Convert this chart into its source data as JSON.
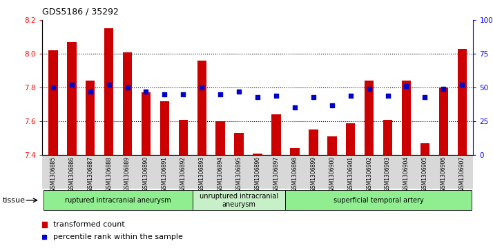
{
  "title": "GDS5186 / 35292",
  "samples": [
    "GSM1306885",
    "GSM1306886",
    "GSM1306887",
    "GSM1306888",
    "GSM1306889",
    "GSM1306890",
    "GSM1306891",
    "GSM1306892",
    "GSM1306893",
    "GSM1306894",
    "GSM1306895",
    "GSM1306896",
    "GSM1306897",
    "GSM1306898",
    "GSM1306899",
    "GSM1306900",
    "GSM1306901",
    "GSM1306902",
    "GSM1306903",
    "GSM1306904",
    "GSM1306905",
    "GSM1306906",
    "GSM1306907"
  ],
  "transformed_count": [
    8.02,
    8.07,
    7.84,
    8.15,
    8.01,
    7.77,
    7.72,
    7.61,
    7.96,
    7.6,
    7.53,
    7.41,
    7.64,
    7.44,
    7.55,
    7.51,
    7.59,
    7.84,
    7.61,
    7.84,
    7.47,
    7.8,
    8.03
  ],
  "percentile_rank": [
    50,
    52,
    47,
    52,
    50,
    47,
    45,
    45,
    50,
    45,
    47,
    43,
    44,
    35,
    43,
    37,
    44,
    49,
    44,
    51,
    43,
    49,
    52
  ],
  "ylim_left": [
    7.4,
    8.2
  ],
  "ylim_right": [
    0,
    100
  ],
  "yticks_left": [
    7.4,
    7.6,
    7.8,
    8.0,
    8.2
  ],
  "yticks_right": [
    0,
    25,
    50,
    75,
    100
  ],
  "bar_color": "#cc0000",
  "dot_color": "#0000cc",
  "baseline": 7.4,
  "grid_lines": [
    7.6,
    7.8,
    8.0
  ],
  "groups": [
    {
      "label": "ruptured intracranial aneurysm",
      "start": 0,
      "end": 8,
      "color": "#90ee90"
    },
    {
      "label": "unruptured intracranial\naneurysm",
      "start": 8,
      "end": 13,
      "color": "#c8f0c8"
    },
    {
      "label": "superficial temporal artery",
      "start": 13,
      "end": 23,
      "color": "#90ee90"
    }
  ],
  "tissue_label": "tissue",
  "legend_bar_label": "transformed count",
  "legend_dot_label": "percentile rank within the sample",
  "fig_bg": "#ffffff",
  "plot_bg": "#ffffff",
  "xtick_bg": "#d8d8d8"
}
